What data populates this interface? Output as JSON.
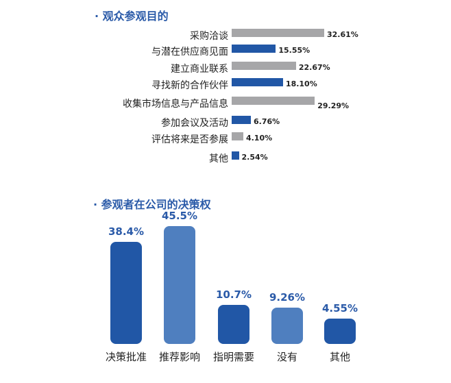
{
  "chart_data": [
    {
      "type": "bar",
      "orientation": "horizontal",
      "title": "观众参观目的",
      "categories": [
        "采购洽谈",
        "与潜在供应商见面",
        "建立商业联系",
        "寻找新的合作伙伴",
        "收集市场信息与产品信息",
        "参加会议及活动",
        "评估将来是否参展",
        "其他"
      ],
      "values": [
        32.61,
        15.55,
        22.67,
        18.1,
        29.29,
        6.76,
        4.1,
        2.54
      ],
      "labels": [
        "32.61%",
        "15.55%",
        "22.67%",
        "18.10%",
        "29.29%",
        "6.76%",
        "4.10%",
        "2.54%"
      ],
      "colors": [
        "#a6a6a8",
        "#2157a6",
        "#a6a6a8",
        "#2157a6",
        "#a6a6a8",
        "#2157a6",
        "#a6a6a8",
        "#2157a6"
      ],
      "grid": false
    },
    {
      "type": "bar",
      "orientation": "vertical",
      "title": "参观者在公司的决策权",
      "categories": [
        "决策批准",
        "推荐影响",
        "指明需要",
        "没有",
        "其他"
      ],
      "values": [
        38.4,
        45.5,
        10.7,
        9.26,
        4.55
      ],
      "labels": [
        "38.4%",
        "45.5%",
        "10.7%",
        "9.26%",
        "4.55%"
      ],
      "colors": [
        "#2157a6",
        "#4f7fbf",
        "#2157a6",
        "#4f7fbf",
        "#2157a6"
      ],
      "grid": false
    }
  ]
}
